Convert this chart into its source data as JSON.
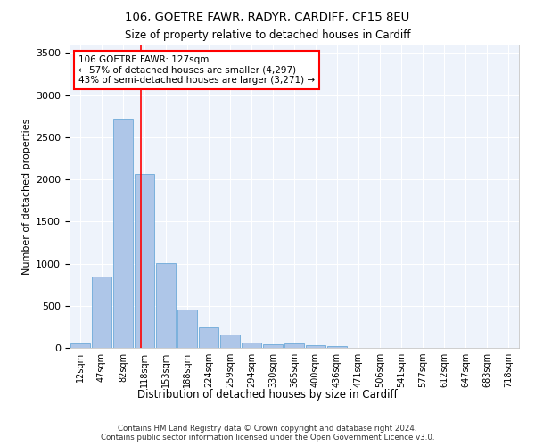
{
  "title1": "106, GOETRE FAWR, RADYR, CARDIFF, CF15 8EU",
  "title2": "Size of property relative to detached houses in Cardiff",
  "xlabel": "Distribution of detached houses by size in Cardiff",
  "ylabel": "Number of detached properties",
  "bin_labels": [
    "12sqm",
    "47sqm",
    "82sqm",
    "118sqm",
    "153sqm",
    "188sqm",
    "224sqm",
    "259sqm",
    "294sqm",
    "330sqm",
    "365sqm",
    "400sqm",
    "436sqm",
    "471sqm",
    "506sqm",
    "541sqm",
    "577sqm",
    "612sqm",
    "647sqm",
    "683sqm",
    "718sqm"
  ],
  "bar_values": [
    55,
    850,
    2720,
    2060,
    1005,
    455,
    248,
    155,
    60,
    45,
    50,
    30,
    25,
    0,
    0,
    0,
    0,
    0,
    0,
    0,
    0
  ],
  "bar_color": "#aec6e8",
  "bar_edge_color": "#5a9fd4",
  "background_color": "#eef3fb",
  "grid_color": "#ffffff",
  "annotation_line1": "106 GOETRE FAWR: 127sqm",
  "annotation_line2": "← 57% of detached houses are smaller (4,297)",
  "annotation_line3": "43% of semi-detached houses are larger (3,271) →",
  "redline_x": 2.85,
  "ylim": [
    0,
    3600
  ],
  "yticks": [
    0,
    500,
    1000,
    1500,
    2000,
    2500,
    3000,
    3500
  ],
  "footer_line1": "Contains HM Land Registry data © Crown copyright and database right 2024.",
  "footer_line2": "Contains public sector information licensed under the Open Government Licence v3.0."
}
